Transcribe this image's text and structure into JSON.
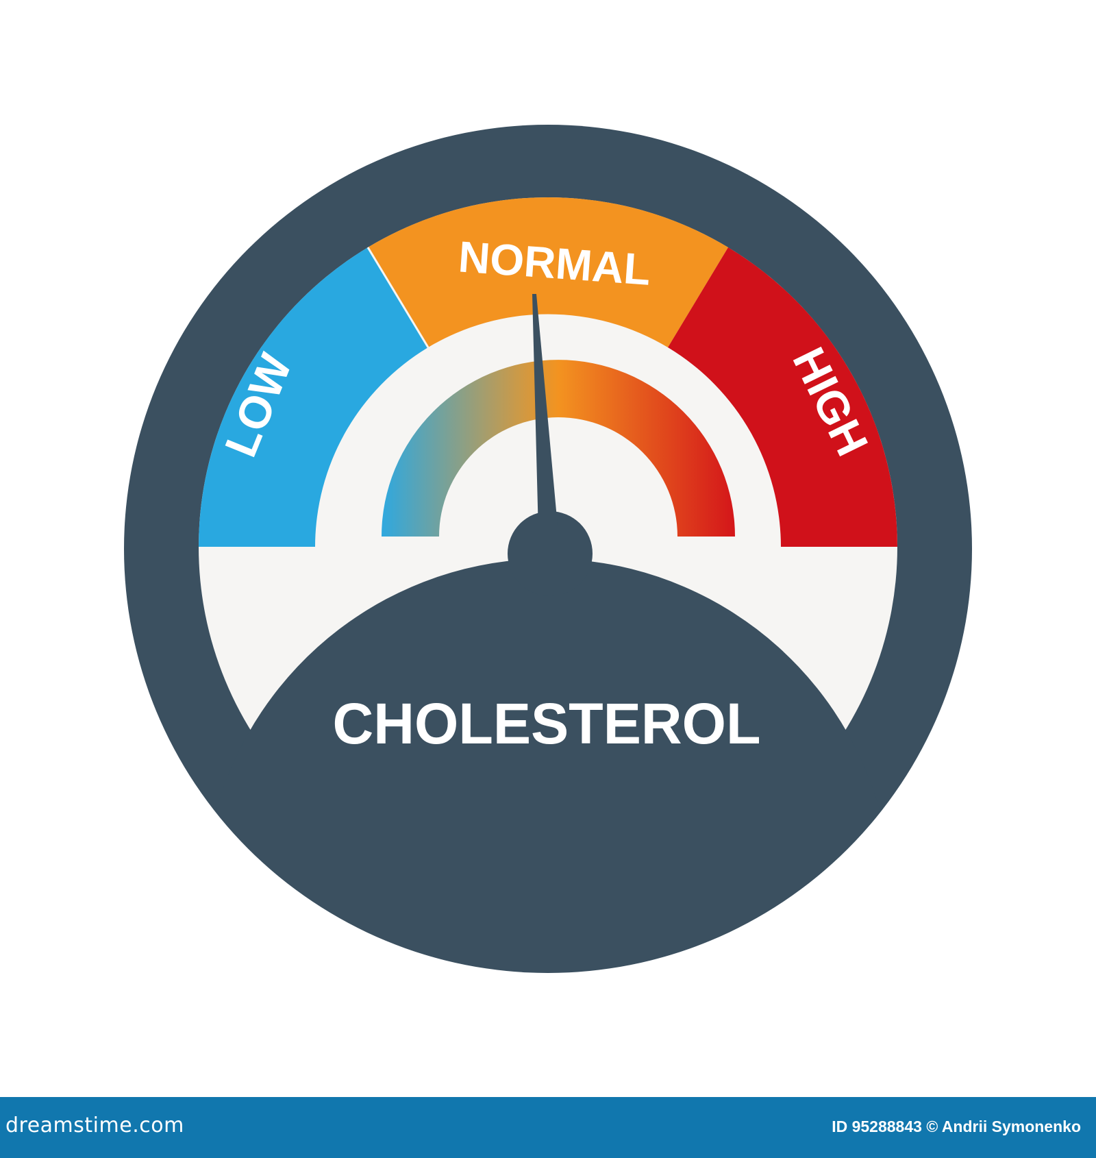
{
  "gauge": {
    "title": "CHOLESTEROL",
    "zones": [
      {
        "label": "LOW",
        "color": "#29a8e0"
      },
      {
        "label": "NORMAL",
        "color": "#f39320"
      },
      {
        "label": "HIGH",
        "color": "#d0111a"
      }
    ],
    "needle_level": 0.52,
    "needle_zone": "NORMAL",
    "body_color": "#3b5060",
    "face_color": "#f6f5f3"
  },
  "footer": {
    "logo": "dreamstime.com",
    "credit": "ID 95288843 © Andrii Symonenko",
    "color": "#1177ae"
  }
}
